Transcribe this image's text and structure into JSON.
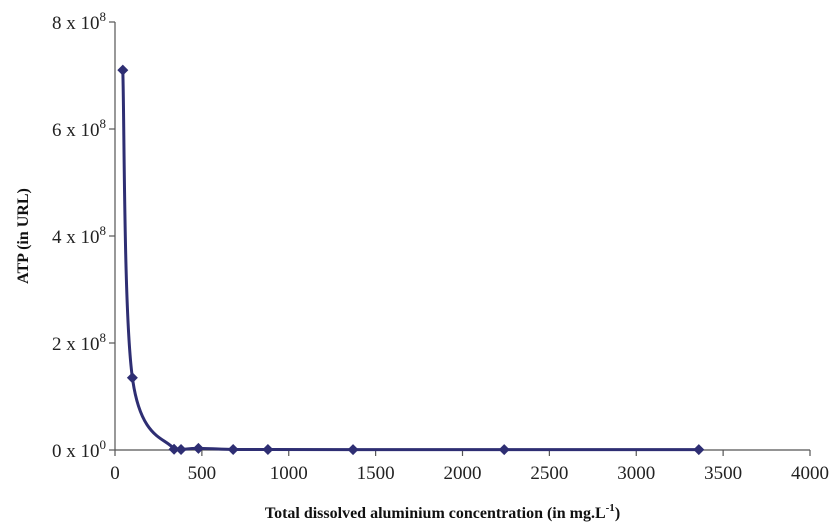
{
  "chart_data": {
    "type": "line",
    "title": "",
    "xlabel": "Total dissolved aluminium concentration (in mg.L",
    "xlabel_sup": "-1",
    "xlabel_suffix": ")",
    "ylabel": "ATP (in URL)",
    "xlim": [
      0,
      4000
    ],
    "ylim": [
      0,
      800000000
    ],
    "x_ticks": [
      0,
      500,
      1000,
      1500,
      2000,
      2500,
      3000,
      3500,
      4000
    ],
    "y_ticks": [
      {
        "value": 0,
        "mantissa": "0",
        "sep": " x 10",
        "exp": "0"
      },
      {
        "value": 200000000,
        "mantissa": "2",
        "sep": " x 10",
        "exp": "8"
      },
      {
        "value": 400000000,
        "mantissa": "4",
        "sep": " x 10",
        "exp": "8"
      },
      {
        "value": 600000000,
        "mantissa": "6",
        "sep": " x 10",
        "exp": "8"
      },
      {
        "value": 800000000,
        "mantissa": "8",
        "sep": " x 10",
        "exp": "8"
      }
    ],
    "grid": false,
    "legend": "none",
    "marker": "diamond",
    "color": "#2e2e73",
    "series": [
      {
        "x": [
          45,
          100,
          340,
          380,
          480,
          680,
          880,
          1370,
          2240,
          3360
        ],
        "y": [
          710000000,
          135000000,
          1500000,
          1000000,
          3000000,
          1000000,
          1000000,
          800000,
          800000,
          700000
        ]
      }
    ]
  }
}
